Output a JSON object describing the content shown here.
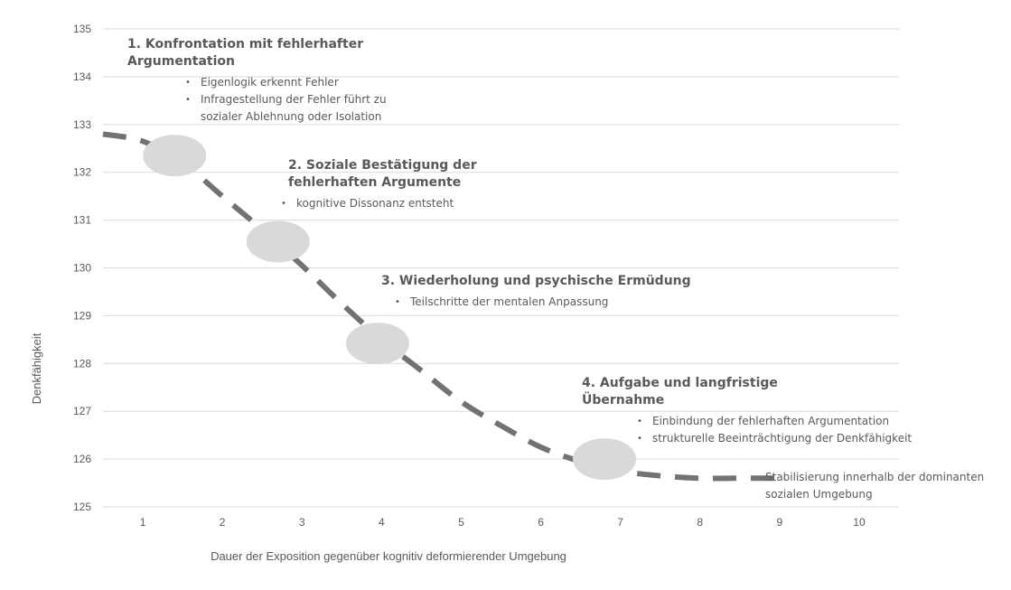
{
  "chart_data": {
    "type": "line",
    "title": "",
    "xlabel": "Dauer der Exposition gegenüber kognitiv deformierender Umgebung",
    "ylabel": "Denkfähigkeit",
    "xlim": [
      0.5,
      10.5
    ],
    "ylim": [
      125,
      135
    ],
    "xticks": [
      1,
      2,
      3,
      4,
      5,
      6,
      7,
      8,
      9,
      10
    ],
    "yticks": [
      125,
      126,
      127,
      128,
      129,
      130,
      131,
      132,
      133,
      134,
      135
    ],
    "grid": "horizontal",
    "series": [
      {
        "style": "dashed",
        "color": "#727272",
        "x": [
          0.5,
          1.0,
          1.5,
          2.0,
          2.5,
          3.0,
          3.5,
          4.0,
          4.5,
          5.0,
          5.5,
          6.0,
          6.5,
          7.0,
          7.5,
          8.0,
          8.5,
          9.0
        ],
        "y": [
          132.8,
          132.65,
          132.2,
          131.5,
          130.8,
          130.05,
          129.25,
          128.5,
          127.85,
          127.2,
          126.7,
          126.25,
          125.95,
          125.75,
          125.65,
          125.6,
          125.6,
          125.6
        ]
      }
    ],
    "markers": [
      {
        "x": 1.4,
        "y": 132.35,
        "color": "#d9d9d9"
      },
      {
        "x": 2.7,
        "y": 130.55,
        "color": "#d9d9d9"
      },
      {
        "x": 3.95,
        "y": 128.42,
        "color": "#d9d9d9"
      },
      {
        "x": 6.8,
        "y": 126.0,
        "color": "#d9d9d9"
      }
    ],
    "annotations": [
      {
        "title": "1. Konfrontation mit fehlerhafter Argumentation",
        "bullets": [
          "Eigenlogik erkennt Fehler",
          "Infragestellung der Fehler führt zu sozialer Ablehnung oder Isolation"
        ]
      },
      {
        "title": "2. Soziale Bestätigung der fehlerhaften Argumente",
        "bullets": [
          "kognitive Dissonanz entsteht"
        ]
      },
      {
        "title": "3. Wiederholung und psychische Ermüdung",
        "bullets": [
          "Teilschritte der mentalen Anpassung"
        ]
      },
      {
        "title": "4. Aufgabe und langfristige Übernahme",
        "bullets": [
          "Einbindung der fehlerhaften Argumentation",
          "strukturelle Beeinträchtigung der Denkfähigkeit"
        ]
      }
    ],
    "end_note": "Stabilisierung innerhalb der dominanten sozialen Umgebung"
  }
}
